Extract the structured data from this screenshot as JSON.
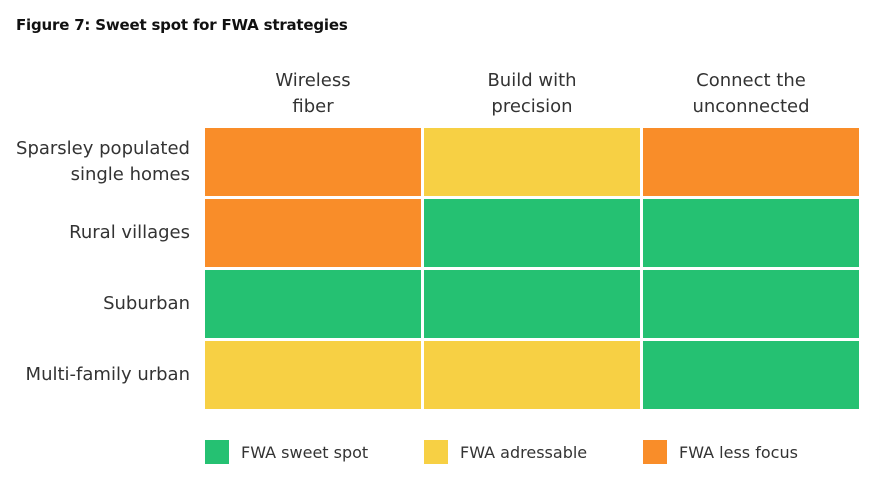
{
  "chart_data": {
    "type": "heatmap",
    "title": "Figure 7: Sweet spot for FWA strategies",
    "columns": [
      "Wireless\nfiber",
      "Build with\nprecision",
      "Connect the\nunconnected"
    ],
    "rows": [
      "Sparsley populated\nsingle homes",
      "Rural villages",
      "Suburban",
      "Multi-family urban"
    ],
    "categories": [
      "FWA sweet spot",
      "FWA adressable",
      "FWA less focus"
    ],
    "colors": {
      "FWA sweet spot": "#25c172",
      "FWA adressable": "#f7d044",
      "FWA less focus": "#f98d29"
    },
    "values": [
      [
        "FWA less focus",
        "FWA adressable",
        "FWA less focus"
      ],
      [
        "FWA less focus",
        "FWA sweet spot",
        "FWA sweet spot"
      ],
      [
        "FWA sweet spot",
        "FWA sweet spot",
        "FWA sweet spot"
      ],
      [
        "FWA adressable",
        "FWA adressable",
        "FWA sweet spot"
      ]
    ],
    "legend_position": "bottom"
  }
}
